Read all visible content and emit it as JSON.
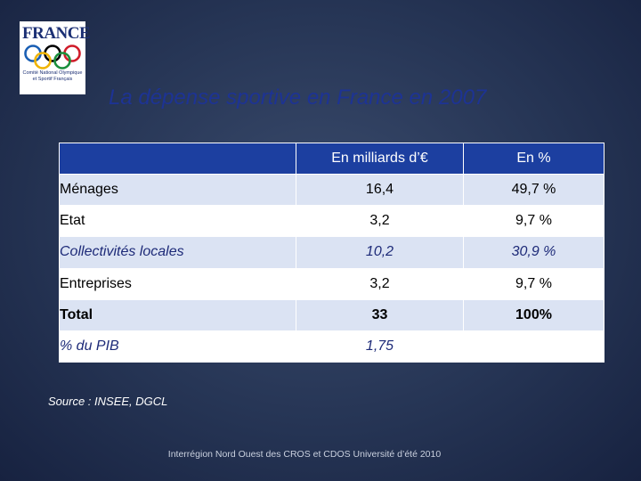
{
  "logo": {
    "wordmark": "FRANCE",
    "subtitle_line1": "Comité National Olympique",
    "subtitle_line2": "et Sportif Français",
    "ring_colors": [
      "#1a5fb4",
      "#000000",
      "#d01c2a",
      "#f0b400",
      "#1a8f3c"
    ]
  },
  "slide": {
    "title": "La dépense sportive en France en 2007"
  },
  "table": {
    "headers": [
      "",
      "En milliards d’€",
      "En %"
    ],
    "rows": [
      {
        "label": "Ménages",
        "amount": "16,4",
        "percent": "49,7 %"
      },
      {
        "label": "Etat",
        "amount": "3,2",
        "percent": "9,7 %"
      },
      {
        "label": "Collectivités locales",
        "amount": "10,2",
        "percent": "30,9 %"
      },
      {
        "label": "Entreprises",
        "amount": "3,2",
        "percent": "9,7 %"
      },
      {
        "label": "Total",
        "amount": "33",
        "percent": "100%"
      },
      {
        "label": "% du PIB",
        "amount": "1,75",
        "percent": ""
      }
    ]
  },
  "source": "Source : INSEE, DGCL",
  "footer": "Interrégion Nord Ouest des CROS et CDOS Université d’été 2010"
}
